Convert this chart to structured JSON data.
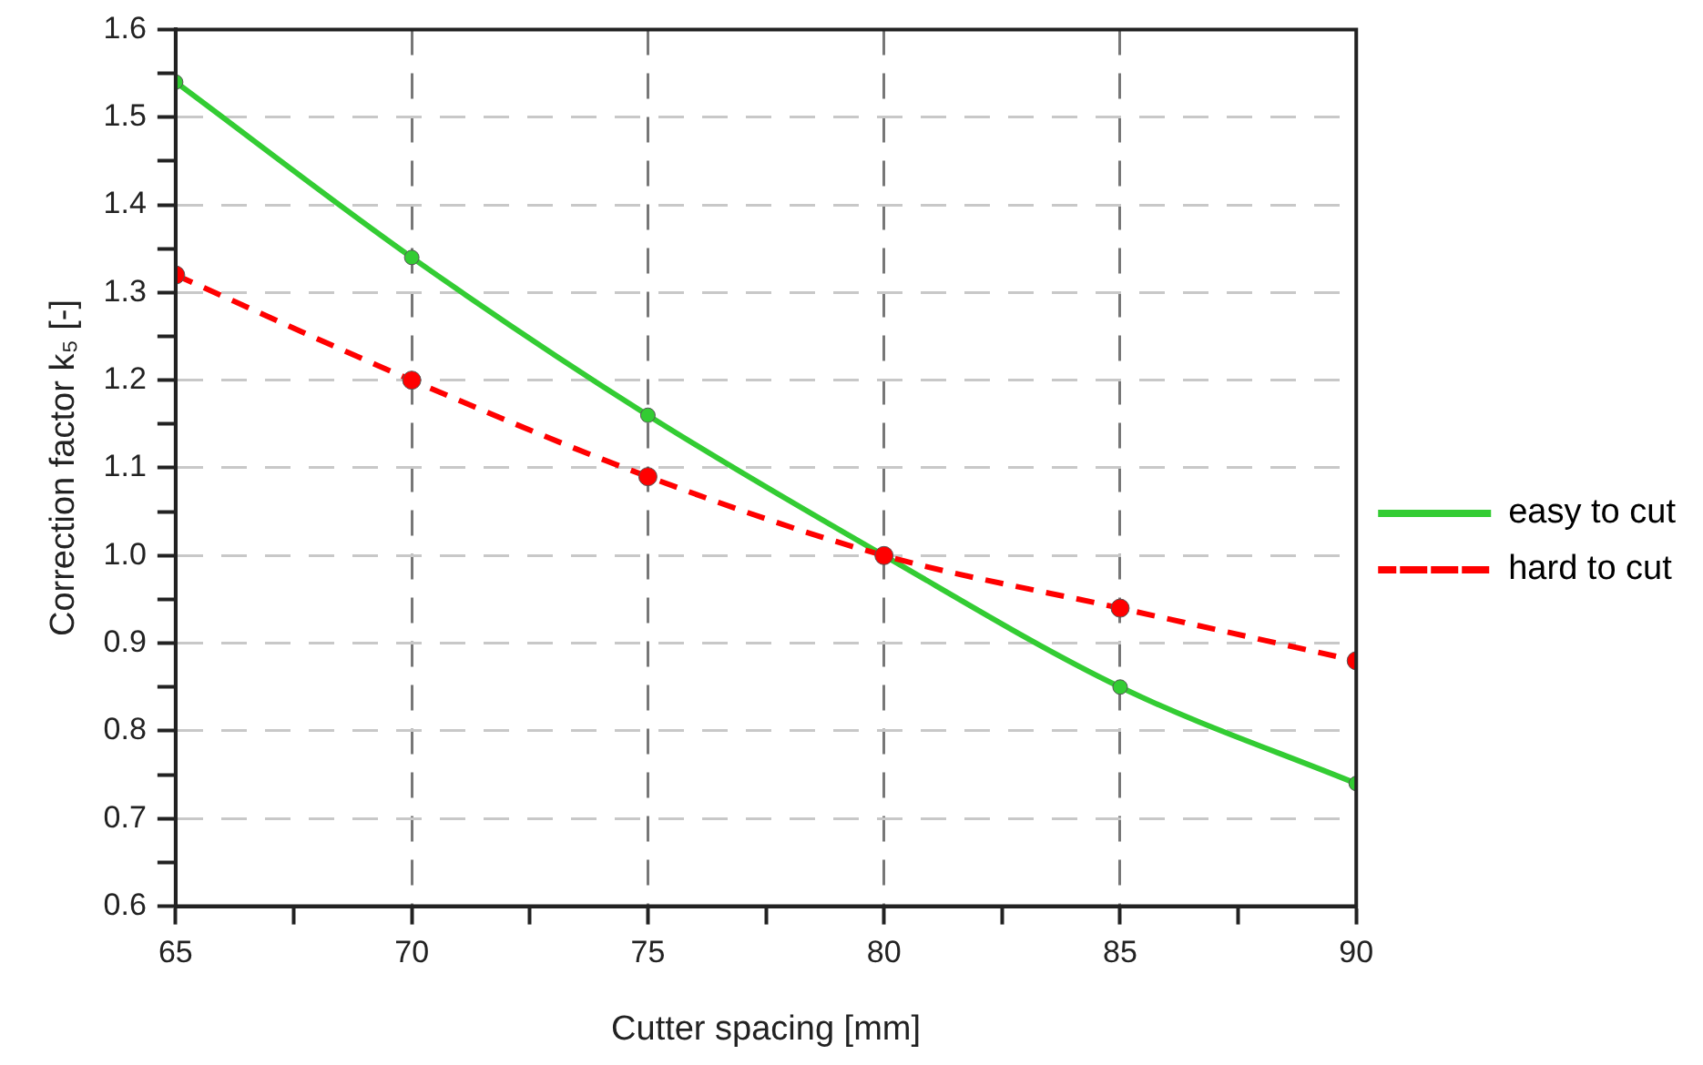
{
  "chart_data": {
    "type": "line",
    "xlabel": "Cutter spacing [mm]",
    "ylabel": "Correction factor k₅ [-]",
    "x": [
      65,
      70,
      75,
      80,
      85,
      90
    ],
    "series": [
      {
        "name": "easy to cut",
        "color": "#33cc33",
        "values": [
          1.54,
          1.34,
          1.16,
          1.0,
          0.85,
          0.74
        ],
        "line_style": "solid"
      },
      {
        "name": "hard to cut",
        "color": "#ff0000",
        "values": [
          1.32,
          1.2,
          1.09,
          1.0,
          0.94,
          0.88
        ],
        "line_style": "dashed"
      }
    ],
    "xlim": [
      65,
      90
    ],
    "xticks": [
      65,
      {
        "value": 67.5,
        "label": null
      },
      70,
      {
        "value": 72.5,
        "label": null
      },
      75,
      {
        "value": 77.5,
        "label": null
      },
      80,
      {
        "value": 82.5,
        "label": null
      },
      85,
      {
        "value": 87.5,
        "label": null
      },
      90
    ],
    "ylim": [
      0.6,
      1.6
    ],
    "yticks": [
      {
        "value": 0.6,
        "label": "0.6"
      },
      {
        "value": 0.65,
        "label": null
      },
      {
        "value": 0.7,
        "label": "0.7"
      },
      {
        "value": 0.75,
        "label": null
      },
      {
        "value": 0.8,
        "label": "0.8"
      },
      {
        "value": 0.85,
        "label": null
      },
      {
        "value": 0.9,
        "label": "0.9"
      },
      {
        "value": 0.95,
        "label": null
      },
      {
        "value": 1.0,
        "label": "1.0"
      },
      {
        "value": 1.05,
        "label": null
      },
      {
        "value": 1.1,
        "label": "1.1"
      },
      {
        "value": 1.15,
        "label": null
      },
      {
        "value": 1.2,
        "label": "1.2"
      },
      {
        "value": 1.25,
        "label": null
      },
      {
        "value": 1.3,
        "label": "1.3"
      },
      {
        "value": 1.35,
        "label": null
      },
      {
        "value": 1.4,
        "label": "1.4"
      },
      {
        "value": 1.45,
        "label": null
      },
      {
        "value": 1.5,
        "label": "1.5"
      },
      {
        "value": 1.55,
        "label": null
      },
      {
        "value": 1.6,
        "label": "1.6"
      }
    ],
    "grid": true,
    "legend": "right",
    "marker": "circle"
  }
}
